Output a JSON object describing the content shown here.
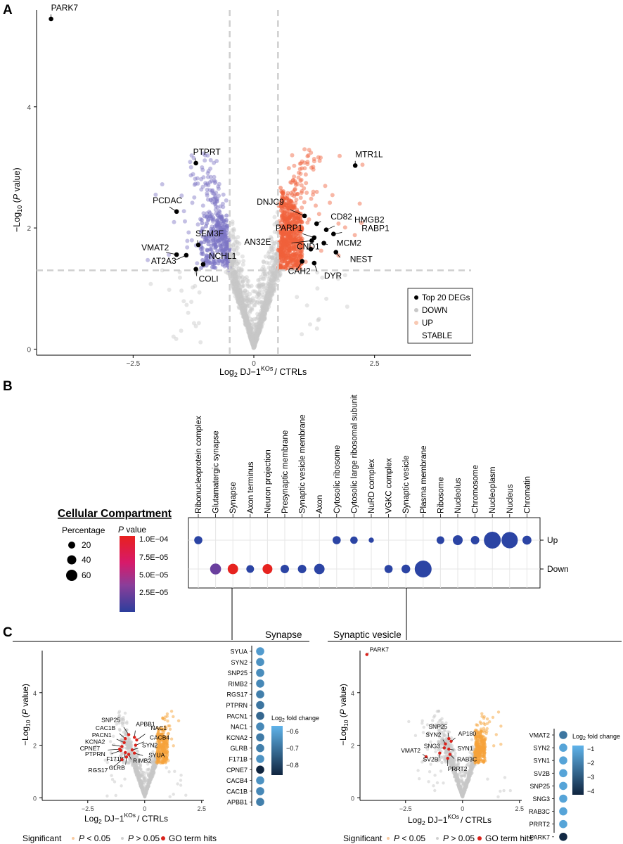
{
  "panels": {
    "a": "A",
    "b": "B",
    "c": "C"
  },
  "panel_a": {
    "xlabel_prefix": "Log",
    "xlabel_sub": "2",
    "xlabel_mid": " DJ−1",
    "xlabel_sup": "KOs",
    "xlabel_end": "/ CTRLs",
    "ylabel_prefix": "−Log",
    "ylabel_sub": "10",
    "ylabel_mid": " (",
    "ylabel_p": "P",
    "ylabel_end": " value)",
    "legend": [
      "Top 20 DEGs",
      "DOWN",
      "UP",
      "STABLE"
    ],
    "colors": {
      "top": "#000000",
      "down": "#b7b2d8",
      "up": "#f0603a",
      "stable": "#c8c8c8"
    }
  },
  "panel_b": {
    "title": "Cellular Compartment",
    "size_legend_title": "Percentage",
    "size_legend_values": [
      "20",
      "40",
      "60"
    ],
    "color_legend_title_p": "P",
    "color_legend_title_rest": " value",
    "color_legend_ticks": [
      "1.0E−04",
      "7.5E−05",
      "5.0E−05",
      "2.5E−05"
    ],
    "rows": [
      "Up",
      "Down"
    ]
  },
  "panel_c": {
    "left_title": "Synapse",
    "right_title": "Synaptic vesicle",
    "fc_legend_prefix": "Log",
    "fc_legend_sub": "2",
    "fc_legend_rest": " fold change",
    "left_fc_ticks": [
      "−0.6",
      "−0.7",
      "−0.8"
    ],
    "right_fc_ticks": [
      "−1",
      "−2",
      "−3",
      "−4"
    ],
    "left_genes": [
      "SYUA",
      "SYN2",
      "SNP25",
      "RIMB2",
      "RGS17",
      "PTPRN",
      "PACN1",
      "NAC1",
      "KCNA2",
      "GLRB",
      "F171B",
      "CPNE7",
      "CACB4",
      "CAC1B",
      "APBB1"
    ],
    "right_genes": [
      "VMAT2",
      "SYN2",
      "SYN1",
      "SV2B",
      "SNP25",
      "SNG3",
      "RAB3C",
      "PRRT2",
      "PARK7",
      "AP180"
    ],
    "bottom_legend": {
      "title": "Significant",
      "p1": "P",
      "s1": " < 0.05",
      "p2": "P",
      "s2": " > 0.05",
      "s3": "GO term hits"
    }
  },
  "chart_data": [
    {
      "type": "scatter",
      "xlim": [
        -4.5,
        4.5
      ],
      "ylim": [
        -0.1,
        5.6
      ],
      "xticks": [
        "−2.5",
        "0",
        "2.5"
      ],
      "yticks": [
        "0",
        "2",
        "4"
      ],
      "thresholds": {
        "x": [
          -0.5,
          0.5
        ],
        "y": 1.3
      },
      "legend_position": "bottom-right",
      "top_degs": [
        {
          "label": "PARK7",
          "x": -4.2,
          "y": 5.45
        },
        {
          "label": "PTPRT",
          "x": -1.2,
          "y": 3.07
        },
        {
          "label": "MTR1L",
          "x": 2.1,
          "y": 3.03
        },
        {
          "label": "PCDAC",
          "x": -1.6,
          "y": 2.27
        },
        {
          "label": "DNJC9",
          "x": 1.05,
          "y": 2.2
        },
        {
          "label": "CD82",
          "x": 1.3,
          "y": 2.07
        },
        {
          "label": "HMGB2",
          "x": 1.5,
          "y": 1.97
        },
        {
          "label": "RABP1",
          "x": 1.65,
          "y": 1.9
        },
        {
          "label": "SEM3F",
          "x": -1.15,
          "y": 1.72
        },
        {
          "label": "PARP1",
          "x": 1.25,
          "y": 1.84
        },
        {
          "label": "MCM2",
          "x": 1.45,
          "y": 1.75
        },
        {
          "label": "VMAT2",
          "x": -1.6,
          "y": 1.56
        },
        {
          "label": "AT2A3",
          "x": -1.4,
          "y": 1.55
        },
        {
          "label": "NCHL1",
          "x": -1.05,
          "y": 1.4
        },
        {
          "label": "AN32E",
          "x": 1.2,
          "y": 1.79
        },
        {
          "label": "CND1",
          "x": 1.18,
          "y": 1.65
        },
        {
          "label": "NEST",
          "x": 1.7,
          "y": 1.6
        },
        {
          "label": "CAH2",
          "x": 1.0,
          "y": 1.45
        },
        {
          "label": "DYR",
          "x": 1.25,
          "y": 1.42
        },
        {
          "label": "COLI",
          "x": -1.2,
          "y": 1.32
        }
      ]
    },
    {
      "type": "scatter",
      "categories": [
        "Ribonucleoprotein complex",
        "Glutamatergic synapse",
        "Synapse",
        "Axon terminus",
        "Neuron projection",
        "Presynaptic membrane",
        "Synaptic vesicle membrane",
        "Axon",
        "Cytosolic ribosome",
        "Cytosolic large ribosomal subunit",
        "NuRD complex",
        "VGKC complex",
        "Synaptic vesicle",
        "Plasma membrane",
        "Ribosome",
        "Nucleolus",
        "Chromosome",
        "Nucleoplasm",
        "Nucleus",
        "Chromatin"
      ],
      "rows": [
        "Up",
        "Down"
      ],
      "series": [
        {
          "name": "Up",
          "cells": [
            [
              0,
              18,
              1.5e-05
            ],
            [
              8,
              18,
              1.5e-05
            ],
            [
              9,
              16,
              1.5e-05
            ],
            [
              10,
              8,
              1.5e-05
            ],
            [
              14,
              17,
              1.5e-05
            ],
            [
              15,
              24,
              1.5e-05
            ],
            [
              16,
              19,
              1.5e-05
            ],
            [
              17,
              48,
              1.5e-05
            ],
            [
              18,
              46,
              1.5e-05
            ],
            [
              19,
              21,
              1.5e-05
            ]
          ]
        },
        {
          "name": "Down",
          "cells": [
            [
              1,
              28,
              5e-05
            ],
            [
              2,
              26,
              0.0001
            ],
            [
              3,
              17,
              2.5e-05
            ],
            [
              4,
              24,
              0.0001
            ],
            [
              5,
              19,
              1.5e-05
            ],
            [
              6,
              19,
              1.5e-05
            ],
            [
              7,
              26,
              1.5e-05
            ],
            [
              11,
              18,
              1.5e-05
            ],
            [
              12,
              20,
              1.5e-05
            ],
            [
              13,
              48,
              1.5e-05
            ]
          ]
        }
      ]
    },
    {
      "type": "scatter",
      "xlim": [
        -4.5,
        2.6
      ],
      "ylim": [
        -0.1,
        5.6
      ],
      "xticks": [
        "−2.5",
        "0",
        "2.5"
      ],
      "yticks": [
        "0",
        "2",
        "4"
      ],
      "hits": [
        {
          "label": "SNP25",
          "x": -0.7,
          "y": 2.4
        },
        {
          "label": "CAC1B",
          "x": -0.85,
          "y": 2.25
        },
        {
          "label": "APBB1",
          "x": -0.45,
          "y": 2.3
        },
        {
          "label": "PACN1",
          "x": -0.9,
          "y": 2.1
        },
        {
          "label": "NAC1",
          "x": -0.35,
          "y": 2.2
        },
        {
          "label": "KCNA2",
          "x": -1.0,
          "y": 1.95
        },
        {
          "label": "CACB4",
          "x": -0.4,
          "y": 2.0
        },
        {
          "label": "CPNE7",
          "x": -1.1,
          "y": 1.85
        },
        {
          "label": "PTPRN",
          "x": -1.05,
          "y": 1.8
        },
        {
          "label": "SYN2",
          "x": -0.55,
          "y": 1.82
        },
        {
          "label": "SYUA",
          "x": -0.45,
          "y": 1.7
        },
        {
          "label": "F171B",
          "x": -0.85,
          "y": 1.72
        },
        {
          "label": "RIMB2",
          "x": -0.7,
          "y": 1.65
        },
        {
          "label": "GLRB",
          "x": -0.8,
          "y": 1.55
        },
        {
          "label": "RGS17",
          "x": -1.0,
          "y": 1.45
        }
      ],
      "fold_change": [
        -0.6,
        -0.62,
        -0.63,
        -0.64,
        -0.66,
        -0.68,
        -0.71,
        -0.64,
        -0.67,
        -0.66,
        -0.62,
        -0.85,
        -0.62,
        -0.64,
        -0.66
      ],
      "fc_range": [
        -0.85,
        -0.55
      ]
    },
    {
      "type": "scatter",
      "xlim": [
        -4.5,
        2.6
      ],
      "ylim": [
        -0.1,
        5.6
      ],
      "xticks": [
        "−2.5",
        "0",
        "2.5"
      ],
      "yticks": [
        "0",
        "2",
        "4"
      ],
      "hits": [
        {
          "label": "PARK7",
          "x": -4.2,
          "y": 5.45
        },
        {
          "label": "SNP25",
          "x": -0.6,
          "y": 2.25
        },
        {
          "label": "SYN2",
          "x": -0.75,
          "y": 2.05
        },
        {
          "label": "AP180",
          "x": -0.5,
          "y": 2.15
        },
        {
          "label": "VMAT2",
          "x": -1.6,
          "y": 1.56
        },
        {
          "label": "SNG3",
          "x": -0.8,
          "y": 1.9
        },
        {
          "label": "SYN1",
          "x": -0.6,
          "y": 1.85
        },
        {
          "label": "SV2B",
          "x": -1.0,
          "y": 1.7
        },
        {
          "label": "RAB3C",
          "x": -0.55,
          "y": 1.65
        },
        {
          "label": "PRRT2",
          "x": -0.65,
          "y": 1.5
        }
      ],
      "fold_change": [
        -2.2,
        -1.0,
        -1.0,
        -1.0,
        -1.0,
        -1.0,
        -1.0,
        -1.0,
        -4.2,
        -1.0
      ],
      "fc_range": [
        -4.3,
        -0.6
      ]
    }
  ]
}
